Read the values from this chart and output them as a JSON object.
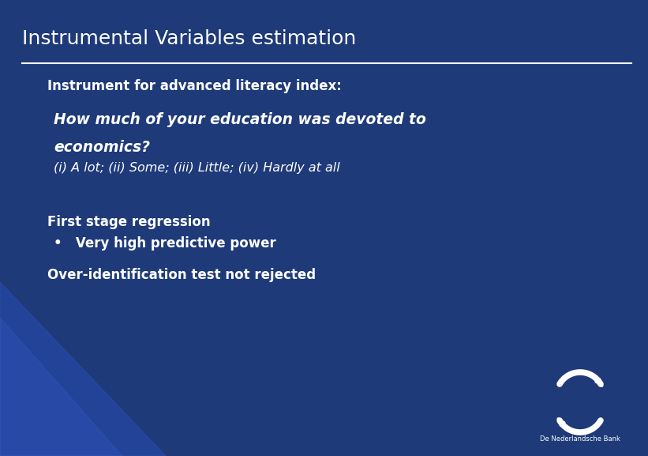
{
  "title": "Instrumental Variables estimation",
  "bg_color": "#1e3a78",
  "title_color": "#ffffff",
  "title_fontsize": 18,
  "line_color": "#ffffff",
  "text_color": "#ffffff",
  "instrument_label": "Instrument for advanced literacy index:",
  "question_line1": "How much of your education was devoted to",
  "question_line2": "economics?",
  "options_line": "(i) A lot; (ii) Some; (iii) Little; (iv) Hardly at all",
  "first_stage_label": "First stage regression",
  "bullet_text": "Very high predictive power",
  "overid_text": "Over-identification test not rejected",
  "logo_text": "De Nederlandsche Bank",
  "triangle1_color": "#2a4db0",
  "triangle2_color": "#3a5ec0"
}
